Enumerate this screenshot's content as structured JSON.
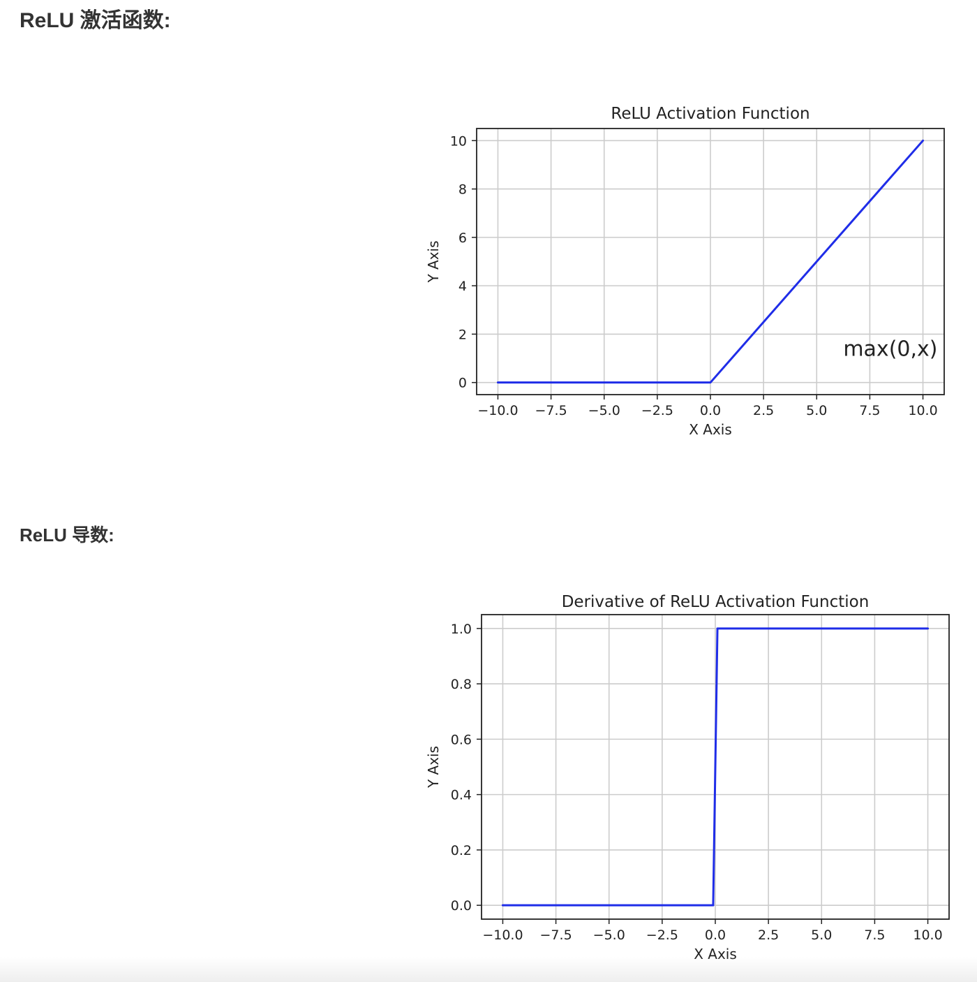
{
  "headings": {
    "relu_function": "ReLU 激活函数:",
    "relu_derivative": "ReLU 导数:"
  },
  "colors": {
    "line": "#1f2de8",
    "grid": "#cccccc",
    "axes": "#222222",
    "text": "#222222"
  },
  "chart_data": [
    {
      "type": "line",
      "title": "ReLU Activation Function",
      "xlabel": "X Axis",
      "ylabel": "Y Axis",
      "xlim": [
        -11,
        11
      ],
      "ylim": [
        -0.5,
        10.5
      ],
      "grid": true,
      "xticks": [
        -10,
        -7.5,
        -5,
        -2.5,
        0,
        2.5,
        5,
        7.5,
        10
      ],
      "xtick_labels": [
        "−10.0",
        "−7.5",
        "−5.0",
        "−2.5",
        "0.0",
        "2.5",
        "5.0",
        "7.5",
        "10.0"
      ],
      "yticks": [
        0,
        2,
        4,
        6,
        8,
        10
      ],
      "ytick_labels": [
        "0",
        "2",
        "4",
        "6",
        "8",
        "10"
      ],
      "series": [
        {
          "x": [
            -10,
            0,
            10
          ],
          "y": [
            0,
            0,
            10
          ]
        }
      ],
      "annotations": [
        {
          "text": "max(0,x)",
          "x": 6.25,
          "y": 1.1
        }
      ]
    },
    {
      "type": "line",
      "title": "Derivative of ReLU Activation Function",
      "xlabel": "X Axis",
      "ylabel": "Y Axis",
      "xlim": [
        -11,
        11
      ],
      "ylim": [
        -0.05,
        1.05
      ],
      "grid": true,
      "xticks": [
        -10,
        -7.5,
        -5,
        -2.5,
        0,
        2.5,
        5,
        7.5,
        10
      ],
      "xtick_labels": [
        "−10.0",
        "−7.5",
        "−5.0",
        "−2.5",
        "0.0",
        "2.5",
        "5.0",
        "7.5",
        "10.0"
      ],
      "yticks": [
        0,
        0.2,
        0.4,
        0.6,
        0.8,
        1.0
      ],
      "ytick_labels": [
        "0.0",
        "0.2",
        "0.4",
        "0.6",
        "0.8",
        "1.0"
      ],
      "series": [
        {
          "x": [
            -10,
            -0.1,
            0.1,
            10
          ],
          "y": [
            0,
            0,
            1,
            1
          ]
        }
      ],
      "annotations": []
    }
  ]
}
